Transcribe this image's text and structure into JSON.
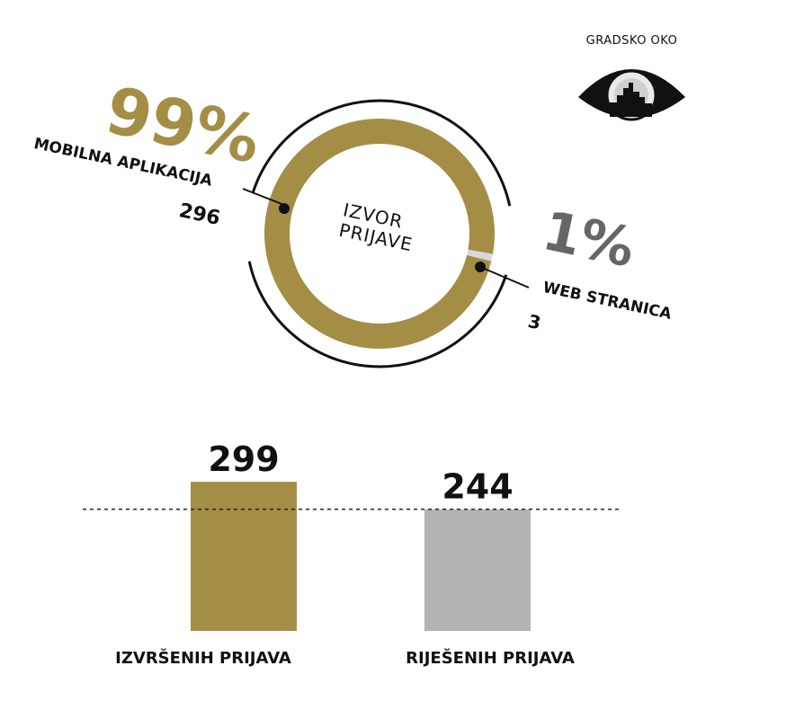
{
  "logo": {
    "text": "GRADSKO OKO",
    "icon": "eye-city-skyline-icon"
  },
  "colors": {
    "gold": "#a48d45",
    "gray": "#b3b3b3",
    "dark": "#111111"
  },
  "chart_data": [
    {
      "type": "pie",
      "title": "IZVOR PRIJAVE",
      "title_lines": [
        "IZVOR",
        "PRIJAVE"
      ],
      "slices": [
        {
          "label": "MOBILNA APLIKACIJA",
          "percent": "99%",
          "percent_value": 99,
          "value": 296,
          "value_text": "296"
        },
        {
          "label": "WEB STRANICA",
          "percent": "1%",
          "percent_value": 1,
          "value": 3,
          "value_text": "3"
        }
      ]
    },
    {
      "type": "bar",
      "categories": [
        "IZVRŠENIH PRIJAVA",
        "RIJEŠENIH PRIJAVA"
      ],
      "values": [
        299,
        244
      ],
      "value_labels": [
        "299",
        "244"
      ],
      "ylim": [
        0,
        310
      ],
      "reference_line": 244
    }
  ]
}
